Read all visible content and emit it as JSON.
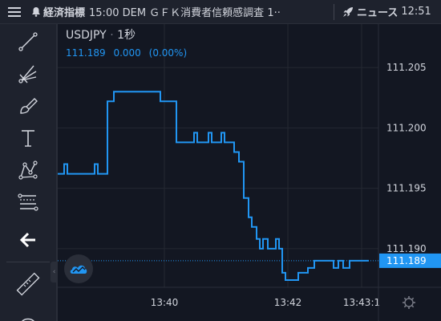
{
  "topbar": {
    "indicator_label": "経済指標",
    "indicator_text": "15:00 DEM ＧＦＫ消費者信頼感調査 1··",
    "news_label": "ニュース",
    "news_time": "12:51"
  },
  "toolbar": {
    "tools": [
      {
        "name": "trend-line-tool",
        "icon": "line-icon"
      },
      {
        "name": "gann-fan-tool",
        "icon": "fan-icon"
      },
      {
        "name": "brush-tool",
        "icon": "brush-icon"
      },
      {
        "name": "text-tool",
        "icon": "text-icon"
      },
      {
        "name": "pattern-tool",
        "icon": "pattern-icon"
      },
      {
        "name": "fib-tool",
        "icon": "fib-icon"
      },
      {
        "name": "back-tool",
        "icon": "arrow-left-icon"
      },
      {
        "name": "ruler-tool",
        "icon": "ruler-icon"
      }
    ]
  },
  "legend": {
    "symbol": "USDJPY",
    "interval": "1秒",
    "price": "111.189",
    "change": "0.000",
    "change_pct": "(0.00%)"
  },
  "colors": {
    "background": "#131722",
    "line": "#2196f3",
    "grid": "#242832",
    "axis_text": "#d1d4dc",
    "price_tag_bg": "#2196f3"
  },
  "chart_data": {
    "type": "line",
    "symbol": "USDJPY",
    "interval": "1秒",
    "y_ticks": [
      "111.205",
      "111.200",
      "111.195",
      "111.190"
    ],
    "x_ticks": [
      "13:40",
      "13:42",
      "13:43:1"
    ],
    "ylim": [
      111.1868,
      111.2086
    ],
    "last_price": "111.189",
    "grid": true,
    "points": [
      [
        0,
        111.1962
      ],
      [
        8,
        111.1962
      ],
      [
        8,
        111.197
      ],
      [
        12,
        111.197
      ],
      [
        12,
        111.1962
      ],
      [
        46,
        111.1962
      ],
      [
        46,
        111.197
      ],
      [
        50,
        111.197
      ],
      [
        50,
        111.1962
      ],
      [
        62,
        111.1962
      ],
      [
        62,
        111.2022
      ],
      [
        70,
        111.2022
      ],
      [
        70,
        111.203
      ],
      [
        128,
        111.203
      ],
      [
        128,
        111.2022
      ],
      [
        148,
        111.2022
      ],
      [
        148,
        111.1988
      ],
      [
        170,
        111.1988
      ],
      [
        170,
        111.1996
      ],
      [
        174,
        111.1996
      ],
      [
        174,
        111.1988
      ],
      [
        188,
        111.1988
      ],
      [
        188,
        111.1996
      ],
      [
        192,
        111.1996
      ],
      [
        192,
        111.1988
      ],
      [
        204,
        111.1988
      ],
      [
        204,
        111.1996
      ],
      [
        208,
        111.1996
      ],
      [
        208,
        111.1988
      ],
      [
        220,
        111.1988
      ],
      [
        220,
        111.198
      ],
      [
        226,
        111.198
      ],
      [
        226,
        111.1972
      ],
      [
        232,
        111.1972
      ],
      [
        232,
        111.1942
      ],
      [
        238,
        111.1942
      ],
      [
        238,
        111.1926
      ],
      [
        242,
        111.1926
      ],
      [
        242,
        111.1918
      ],
      [
        248,
        111.1918
      ],
      [
        248,
        111.1908
      ],
      [
        252,
        111.1908
      ],
      [
        252,
        111.19
      ],
      [
        256,
        111.19
      ],
      [
        256,
        111.1908
      ],
      [
        262,
        111.1908
      ],
      [
        262,
        111.19
      ],
      [
        272,
        111.19
      ],
      [
        272,
        111.1908
      ],
      [
        276,
        111.1908
      ],
      [
        276,
        111.19
      ],
      [
        280,
        111.19
      ],
      [
        280,
        111.188
      ],
      [
        284,
        111.188
      ],
      [
        284,
        111.1874
      ],
      [
        300,
        111.1874
      ],
      [
        300,
        111.188
      ],
      [
        312,
        111.188
      ],
      [
        312,
        111.1884
      ],
      [
        320,
        111.1884
      ],
      [
        320,
        111.189
      ],
      [
        344,
        111.189
      ],
      [
        344,
        111.1884
      ],
      [
        350,
        111.1884
      ],
      [
        350,
        111.189
      ],
      [
        356,
        111.189
      ],
      [
        356,
        111.1884
      ],
      [
        364,
        111.1884
      ],
      [
        364,
        111.189
      ],
      [
        388,
        111.189
      ]
    ]
  }
}
